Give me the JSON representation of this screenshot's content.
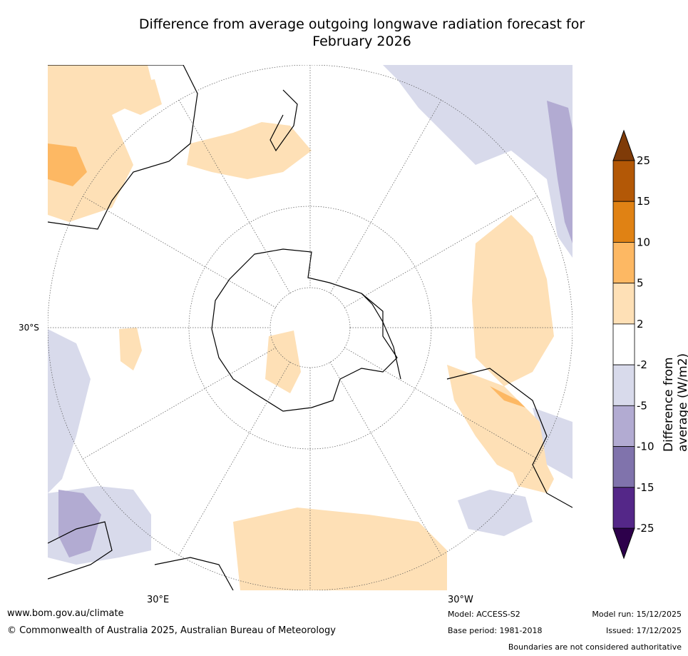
{
  "title_line1": "Difference from average outgoing longwave radiation forecast for",
  "title_line2": "February 2026",
  "map": {
    "projection": "south-polar-stereographic",
    "labels": {
      "lat_30s": "30°S",
      "lon_30e": "30°E",
      "lon_30w": "30°W"
    }
  },
  "colorbar": {
    "title": "Difference from average (W/m2)",
    "ticks": [
      "25",
      "15",
      "10",
      "5",
      "2",
      "-2",
      "-5",
      "-10",
      "-15",
      "-25"
    ],
    "colors": [
      "#7f3b08",
      "#b35806",
      "#e08214",
      "#fdb863",
      "#fee0b6",
      "#ffffff",
      "#d8daeb",
      "#b2abd2",
      "#8073ac",
      "#542788",
      "#2d004b"
    ]
  },
  "footer": {
    "website": "www.bom.gov.au/climate",
    "copyright": "© Commonwealth of Australia 2025, Australian Bureau of Meteorology",
    "model": "Model: ACCESS-S2",
    "base_period": "Base period: 1981-2018",
    "model_run": "Model run: 15/12/2025",
    "issued": "Issued: 17/12/2025",
    "disclaimer": "Boundaries are not considered authoritative"
  }
}
